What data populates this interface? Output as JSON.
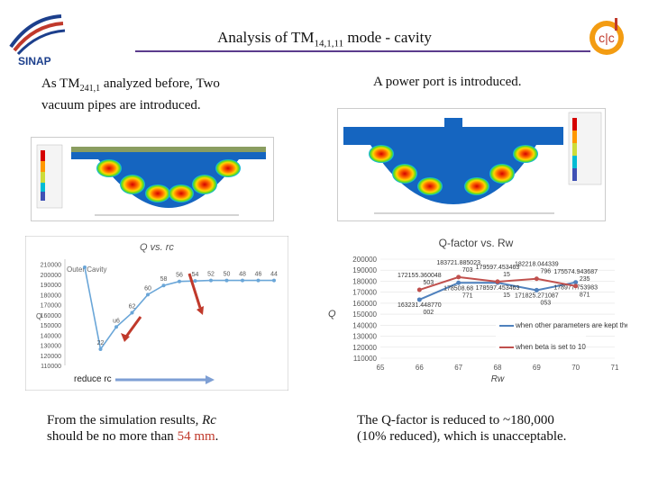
{
  "slide": {
    "title_main": "Analysis of TM",
    "title_sub": "14,1,11",
    "title_rest": " mode - cavity",
    "left_intro_a": "As TM",
    "left_intro_sub": "241,1",
    "left_intro_b": " analyzed before, Two",
    "left_intro_c": "vacuum pipes are introduced.",
    "right_intro": "A power port is introduced.",
    "bottom_left_a": "From the simulation results, ",
    "bottom_left_rc": "Rc",
    "bottom_left_b": "should be no more than ",
    "bottom_left_val": "54 mm",
    "bottom_left_end": ".",
    "bottom_right_a": "The Q-factor is reduced to ~180,000",
    "bottom_right_b": "(10% reduced), which is unacceptable."
  },
  "logos": {
    "left": "SINAP",
    "right": "c|c"
  },
  "chart_data": [
    {
      "type": "line",
      "title": "Q vs. rc",
      "ylabel": "Q",
      "annotation_reduce": "reduce rc",
      "annotation_inset": "Outer Cavity",
      "yticks": [
        "210000",
        "200000",
        "190000",
        "180000",
        "170000",
        "160000",
        "150000",
        "140000",
        "130000",
        "120000",
        "110000"
      ],
      "ylim": [
        110000,
        215000
      ],
      "points": [
        {
          "label": "",
          "y": 207000
        },
        {
          "label": "22",
          "y": 126000
        },
        {
          "label": "u6",
          "y": 148000
        },
        {
          "label": "62",
          "y": 162000
        },
        {
          "label": "60",
          "y": 180000
        },
        {
          "label": "58",
          "y": 189000
        },
        {
          "label": "56",
          "y": 193000
        },
        {
          "label": "54",
          "y": 193500
        },
        {
          "label": "52",
          "y": 194000
        },
        {
          "label": "50",
          "y": 194000
        },
        {
          "label": "48",
          "y": 194000
        },
        {
          "label": "46",
          "y": 194000
        },
        {
          "label": "44",
          "y": 194000
        }
      ]
    },
    {
      "type": "line",
      "title": "Q-factor vs. Rw",
      "xlabel": "Rw",
      "ylabel": "Q",
      "x": [
        65,
        66,
        67,
        68,
        69,
        70,
        71
      ],
      "ylim": [
        110000,
        200000
      ],
      "yticks": [
        "200000",
        "190000",
        "180000",
        "170000",
        "160000",
        "150000",
        "140000",
        "130000",
        "120000",
        "110000"
      ],
      "series": [
        {
          "name": "when other parameters are kept the same",
          "color": "#4f81bd",
          "x": [
            66,
            67,
            68,
            69,
            70
          ],
          "y": [
            163231.44877,
            178508.68,
            178597.453463,
            171825.271087,
            178977.753983
          ],
          "labels": [
            "163231.448770 002",
            "178508.68 771",
            "178597.453463 15",
            "171825.271087 053",
            "178977.753983 871"
          ]
        },
        {
          "name": "when beta is set to 10",
          "color": "#c0504d",
          "x": [
            66,
            67,
            68,
            69,
            70
          ],
          "y": [
            172155.360048,
            183721.885023,
            179597.453463,
            182218.044339,
            175574.943687
          ],
          "labels": [
            "172155.360048 503",
            "183721.885023 703",
            "179597.453463 15",
            "182218.044339 796",
            "175574.943687 235"
          ]
        }
      ]
    }
  ]
}
